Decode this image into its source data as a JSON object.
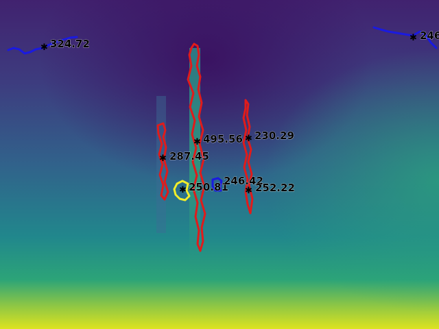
{
  "colors": {
    "heatmap_low": "#41146b",
    "heatmap_mid": "#2a788e",
    "heatmap_high": "#e5e419",
    "contour_red": "#e01b1b",
    "contour_blue": "#1a1ae0",
    "contour_yellow": "#f2ee2a",
    "marker": "#000000"
  },
  "annotations": [
    {
      "id": "top-left-blue",
      "label": "324.72",
      "color": "blue"
    },
    {
      "id": "top-right-blue",
      "label": "246",
      "color": "blue"
    },
    {
      "id": "center-tall-red",
      "label": "495.56",
      "color": "red"
    },
    {
      "id": "left-red",
      "label": "287.45",
      "color": "red"
    },
    {
      "id": "right-red-upper",
      "label": "230.29",
      "color": "red"
    },
    {
      "id": "center-yellow",
      "label": "250.81",
      "color": "yellow"
    },
    {
      "id": "center-small-blue",
      "label": "246.42",
      "color": "blue"
    },
    {
      "id": "right-red-lower",
      "label": "252.22",
      "color": "red"
    }
  ]
}
